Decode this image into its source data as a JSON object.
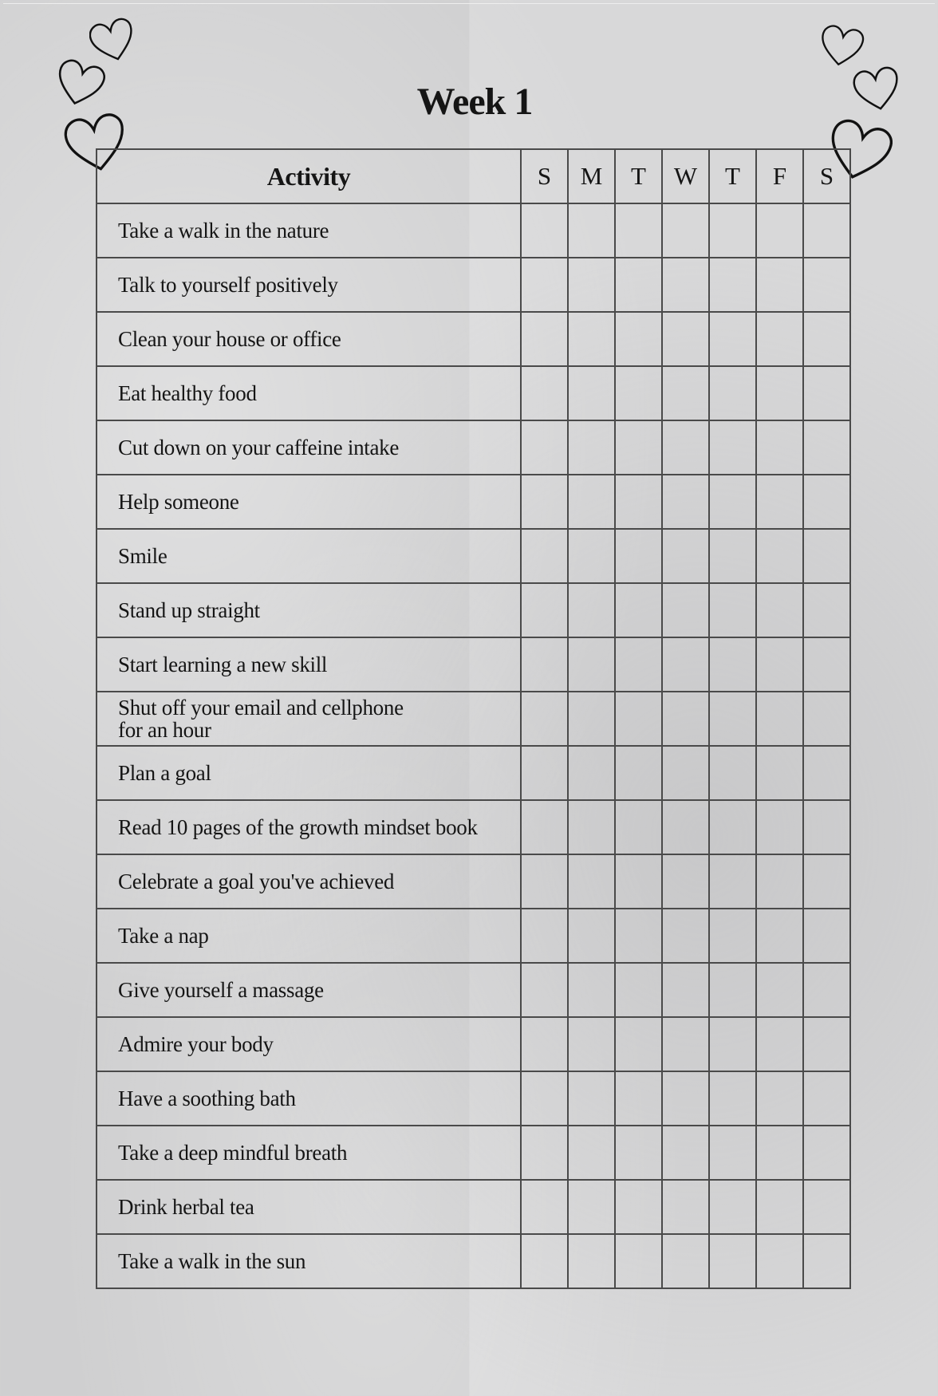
{
  "title": "Week 1",
  "table": {
    "header": "Activity",
    "days": [
      "S",
      "M",
      "T",
      "W",
      "T",
      "F",
      "S"
    ],
    "activities": [
      "Take a walk in the nature",
      "Talk to yourself positively",
      "Clean your house or office",
      "Eat healthy food",
      "Cut down on your caffeine intake",
      "Help someone",
      "Smile",
      "Stand up straight",
      "Start learning a new skill",
      "Shut off your email and cellphone\nfor an hour",
      "Plan a goal",
      "Read 10 pages of the growth mindset book",
      "Celebrate a goal you've achieved",
      "Take a nap",
      "Give yourself a massage",
      "Admire your body",
      "Have a soothing bath",
      "Take a deep mindful breath",
      "Drink herbal tea",
      "Take a walk in the sun"
    ]
  },
  "decorations": {
    "icon": "heart-outline-icon",
    "count_left": 3,
    "count_right": 3
  }
}
